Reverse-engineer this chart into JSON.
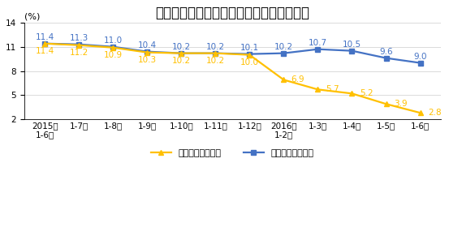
{
  "title": "民间固定资产投资和全国固定资产投资增速",
  "ylabel": "(%)",
  "categories": [
    "2015年\n1-6月",
    "1-7月",
    "1-8月",
    "1-9月",
    "1-10月",
    "1-11月",
    "1-12月",
    "2016年\n1-2月",
    "1-3月",
    "1-4月",
    "1-5月",
    "1-6月"
  ],
  "minjian": [
    11.4,
    11.2,
    10.9,
    10.3,
    10.2,
    10.2,
    10.0,
    6.9,
    5.7,
    5.2,
    3.9,
    2.8
  ],
  "quanguo": [
    11.4,
    11.3,
    11.0,
    10.4,
    10.2,
    10.2,
    10.1,
    10.2,
    10.7,
    10.5,
    9.6,
    9.0
  ],
  "minjian_color": "#FFC000",
  "quanguo_color": "#4472C4",
  "minjian_label": "民间固定资产投资",
  "quanguo_label": "全国固定资产投资",
  "ylim_min": 2,
  "ylim_max": 14,
  "yticks": [
    2,
    5,
    8,
    11,
    14
  ],
  "bg_color": "#FFFFFF",
  "title_fontsize": 12,
  "label_fontsize": 7.5,
  "tick_fontsize": 7.5,
  "legend_fontsize": 8
}
